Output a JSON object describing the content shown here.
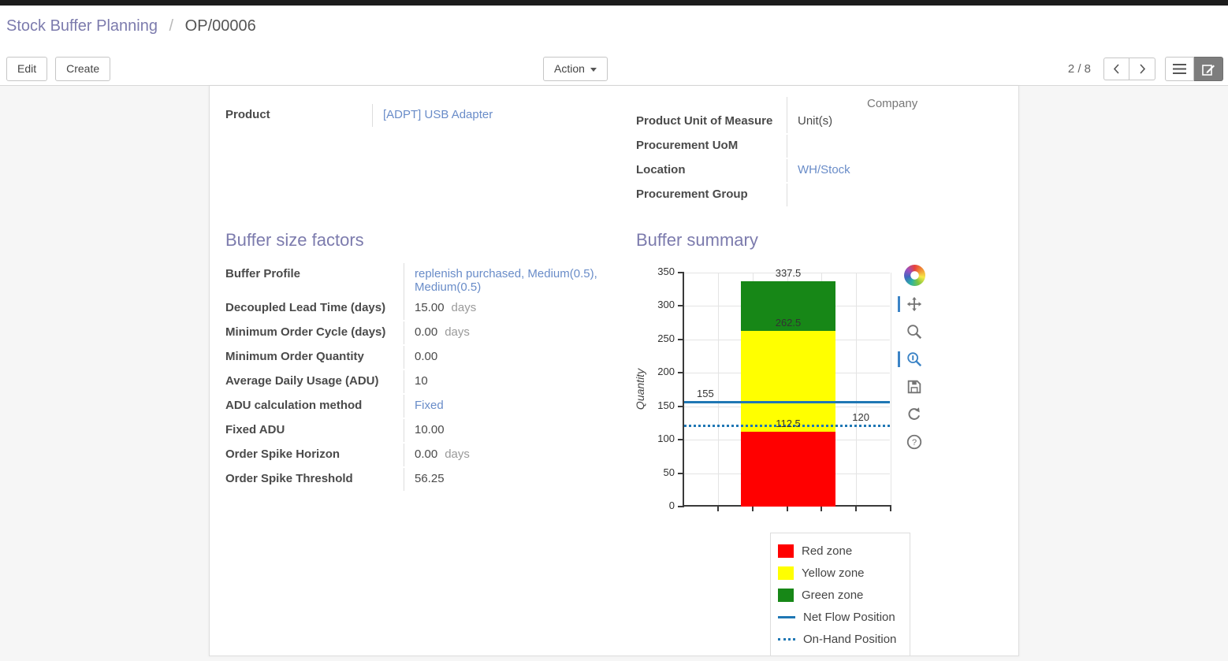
{
  "breadcrumb": {
    "parent": "Stock Buffer Planning",
    "separator": "/",
    "current": "OP/00006"
  },
  "actions": {
    "edit": "Edit",
    "create": "Create",
    "action": "Action"
  },
  "pager": {
    "counter": "2 / 8"
  },
  "icons": {
    "action_caret": "caret-down",
    "prev": "chevron-left",
    "next": "chevron-right",
    "list_view": "list-lines",
    "form_view": "pencil-sheet",
    "chart_logo": "pinwheel",
    "pan": "arrows-move",
    "box_zoom": "magnifier",
    "wheel_zoom": "magnifier-scroll",
    "save": "floppy-disk",
    "reset": "circular-arrow",
    "help": "question-circle"
  },
  "colors": {
    "accent": "#7c7bad",
    "link": "#698cc8",
    "red_zone": "#ff0000",
    "yellow_zone": "#ffff00",
    "green_zone": "#178717",
    "blue_line": "#1f77b4"
  },
  "form": {
    "product": {
      "label": "Product",
      "value": "[ADPT] USB Adapter"
    },
    "clipped_value": "Company",
    "right_rows": [
      {
        "label": "Product Unit of Measure",
        "value": "Unit(s)"
      },
      {
        "label": "Procurement UoM",
        "value": ""
      },
      {
        "label": "Location",
        "value": "WH/Stock"
      },
      {
        "label": "Procurement Group",
        "value": ""
      }
    ],
    "factors_title": "Buffer size factors",
    "summary_title": "Buffer summary",
    "factors_rows": [
      {
        "label": "Buffer Profile",
        "value": "replenish purchased, Medium(0.5), Medium(0.5)"
      },
      {
        "label": "Decoupled Lead Time (days)",
        "value": "15.00",
        "suffix": "days"
      },
      {
        "label": "Minimum Order Cycle (days)",
        "value": "0.00",
        "suffix": "days"
      },
      {
        "label": "Minimum Order Quantity",
        "value": "0.00"
      },
      {
        "label": "Average Daily Usage (ADU)",
        "value": "10"
      },
      {
        "label": "ADU calculation method",
        "value": "Fixed"
      },
      {
        "label": "Fixed ADU",
        "value": "10.00"
      },
      {
        "label": "Order Spike Horizon",
        "value": "0.00",
        "suffix": "days"
      },
      {
        "label": "Order Spike Threshold",
        "value": "56.25"
      }
    ]
  },
  "chart_data": {
    "type": "bar",
    "title": "",
    "ylabel": "Quantity",
    "ylim": [
      0,
      350
    ],
    "yticks": [
      350,
      300,
      250,
      200,
      150,
      100,
      50,
      0
    ],
    "x_gridlines": 6,
    "grid": true,
    "zones": [
      {
        "name": "Red zone",
        "from": 0,
        "to": 112.5,
        "color": "#ff0000"
      },
      {
        "name": "Yellow zone",
        "from": 112.5,
        "to": 262.5,
        "color": "#ffff00"
      },
      {
        "name": "Green zone",
        "from": 262.5,
        "to": 337.5,
        "color": "#178717"
      }
    ],
    "lines": [
      {
        "name": "Net Flow Position",
        "value": 155,
        "style": "solid",
        "color": "#1f77b4",
        "label": "155",
        "label_side": "left"
      },
      {
        "name": "On-Hand Position",
        "value": 120,
        "style": "dotted",
        "color": "#1f77b4",
        "label": "120",
        "label_side": "right"
      }
    ],
    "bar_annotations": [
      {
        "text": "337.5",
        "value": 337.5
      },
      {
        "text": "262.5",
        "value": 262.5
      },
      {
        "text": "112.5",
        "value": 112.5
      }
    ],
    "legend_position": "bottom-right",
    "legend": [
      {
        "label": "Red zone",
        "swatch": "square",
        "color": "#ff0000"
      },
      {
        "label": "Yellow zone",
        "swatch": "square",
        "color": "#ffff00"
      },
      {
        "label": "Green zone",
        "swatch": "square",
        "color": "#178717"
      },
      {
        "label": "Net Flow Position",
        "swatch": "line",
        "color": "#1f77b4"
      },
      {
        "label": "On-Hand Position",
        "swatch": "dotted",
        "color": "#1f77b4"
      }
    ]
  }
}
